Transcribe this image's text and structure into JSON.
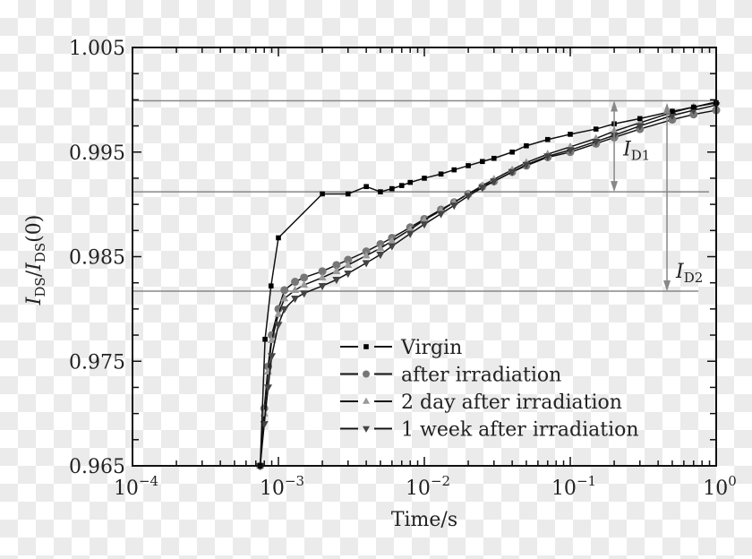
{
  "chart_data": {
    "type": "scatter",
    "xlabel": "Time/s",
    "ylabel": "I_DS/I_DS(0)",
    "ylabel_parts": {
      "main": "I",
      "sub": "DS",
      "slash": "/",
      "main2": "I",
      "sub2": "DS",
      "tail": "(0)"
    },
    "xscale": "log",
    "xlim": [
      0.0001,
      1
    ],
    "ylim": [
      0.965,
      1.005
    ],
    "xticks": [
      {
        "base": "10",
        "exp": "−4"
      },
      {
        "base": "10",
        "exp": "−3"
      },
      {
        "base": "10",
        "exp": "−2"
      },
      {
        "base": "10",
        "exp": "−1"
      },
      {
        "base": "10",
        "exp": "0"
      }
    ],
    "xtick_values": [
      0.0001,
      0.001,
      0.01,
      0.1,
      1
    ],
    "yticks": [
      "1.005",
      "0.995",
      "0.985",
      "0.975",
      "0.965"
    ],
    "ytick_values": [
      1.005,
      0.995,
      0.985,
      0.975,
      0.965
    ],
    "grid": false,
    "legend_position": "bottom-right",
    "series": [
      {
        "name": "Virgin",
        "marker": "square",
        "color": "#000000",
        "x": [
          0.00075,
          0.00081,
          0.00089,
          0.001,
          0.002,
          0.003,
          0.004,
          0.005,
          0.006,
          0.007,
          0.008,
          0.01,
          0.013,
          0.016,
          0.02,
          0.025,
          0.03,
          0.04,
          0.05,
          0.07,
          0.1,
          0.15,
          0.2,
          0.3,
          0.5,
          0.7,
          1
        ],
        "y": [
          0.965,
          0.9771,
          0.9822,
          0.9868,
          0.991,
          0.991,
          0.9917,
          0.9912,
          0.9915,
          0.9918,
          0.9921,
          0.9925,
          0.9929,
          0.9933,
          0.9937,
          0.9941,
          0.9944,
          0.995,
          0.9956,
          0.9962,
          0.9967,
          0.9972,
          0.9977,
          0.9982,
          0.9989,
          0.9993,
          0.9997
        ]
      },
      {
        "name": "after irradiation",
        "marker": "circle",
        "color": "#777777",
        "x": [
          0.00075,
          0.0008,
          0.00085,
          0.0009,
          0.001,
          0.0011,
          0.0013,
          0.0015,
          0.002,
          0.0025,
          0.003,
          0.004,
          0.005,
          0.006,
          0.008,
          0.01,
          0.013,
          0.016,
          0.02,
          0.025,
          0.03,
          0.04,
          0.05,
          0.07,
          0.1,
          0.15,
          0.2,
          0.3,
          0.5,
          0.7,
          1
        ],
        "y": [
          0.965,
          0.9705,
          0.9745,
          0.9775,
          0.98,
          0.9818,
          0.9826,
          0.983,
          0.9836,
          0.9842,
          0.9847,
          0.9855,
          0.9862,
          0.9868,
          0.9878,
          0.9886,
          0.9895,
          0.9902,
          0.991,
          0.9917,
          0.9922,
          0.9931,
          0.9937,
          0.9945,
          0.995,
          0.9958,
          0.9964,
          0.9972,
          0.9981,
          0.9986,
          0.999
        ]
      },
      {
        "name": "2 day after irradiation",
        "marker": "triangle-up",
        "color": "#999999",
        "x": [
          0.00075,
          0.0008,
          0.00085,
          0.0009,
          0.001,
          0.0011,
          0.0013,
          0.0015,
          0.002,
          0.0025,
          0.003,
          0.004,
          0.005,
          0.006,
          0.008,
          0.01,
          0.013,
          0.016,
          0.02,
          0.025,
          0.03,
          0.04,
          0.05,
          0.07,
          0.1,
          0.15,
          0.2,
          0.3,
          0.5,
          0.7,
          1
        ],
        "y": [
          0.965,
          0.97,
          0.974,
          0.977,
          0.9795,
          0.981,
          0.9818,
          0.9823,
          0.983,
          0.9836,
          0.9842,
          0.9851,
          0.9858,
          0.9865,
          0.9876,
          0.9885,
          0.9894,
          0.9902,
          0.991,
          0.9918,
          0.9924,
          0.9933,
          0.994,
          0.9948,
          0.9955,
          0.9963,
          0.997,
          0.9978,
          0.9988,
          0.9993,
          0.9998
        ]
      },
      {
        "name": "1 week after irradiation",
        "marker": "triangle-down",
        "color": "#444444",
        "x": [
          0.00075,
          0.0008,
          0.00085,
          0.0009,
          0.001,
          0.0011,
          0.0013,
          0.0015,
          0.002,
          0.0025,
          0.003,
          0.004,
          0.005,
          0.006,
          0.008,
          0.01,
          0.013,
          0.016,
          0.02,
          0.025,
          0.03,
          0.04,
          0.05,
          0.07,
          0.1,
          0.15,
          0.2,
          0.3,
          0.5,
          0.7,
          1
        ],
        "y": [
          0.965,
          0.969,
          0.9725,
          0.9755,
          0.9785,
          0.98,
          0.981,
          0.9815,
          0.9822,
          0.9828,
          0.9834,
          0.9844,
          0.9852,
          0.986,
          0.9872,
          0.9881,
          0.9891,
          0.9899,
          0.9908,
          0.9916,
          0.9922,
          0.9931,
          0.9938,
          0.9946,
          0.9952,
          0.996,
          0.9966,
          0.9975,
          0.9985,
          0.999,
          0.9995
        ]
      }
    ],
    "reference_lines": [
      {
        "y": 0.9999
      },
      {
        "y": 0.9912
      },
      {
        "y": 0.9817
      }
    ],
    "annotations": [
      {
        "label_main": "I",
        "label_sub": "D1",
        "x": 0.2,
        "y_from": 0.9999,
        "y_to": 0.9912
      },
      {
        "label_main": "I",
        "label_sub": "D2",
        "x": 0.46,
        "y_from": 0.9997,
        "y_to": 0.9817
      }
    ]
  }
}
